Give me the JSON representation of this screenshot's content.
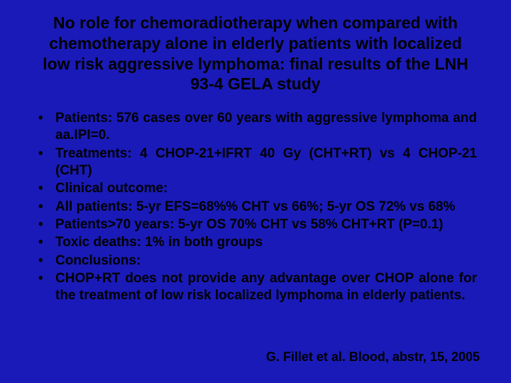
{
  "background_color": "#1a1ab8",
  "text_color": "#000000",
  "title": {
    "text": "No role for chemoradiotherapy when compared with chemotherapy alone in elderly patients with localized low risk aggressive lymphoma: final results of the LNH 93-4 GELA study",
    "fontsize": 23,
    "fontweight": "bold",
    "align": "center"
  },
  "bullets": [
    "Patients: 576 cases over 60 years with aggressive lymphoma and aa.IPI=0.",
    "Treatments: 4 CHOP-21+IFRT 40 Gy (CHT+RT) vs 4 CHOP-21 (CHT)",
    "Clinical outcome:",
    "All patients: 5-yr EFS=68%% CHT vs 66%; 5-yr OS 72% vs 68%",
    "Patients>70 years: 5-yr OS 70% CHT vs 58% CHT+RT (P=0.1)",
    "Toxic deaths: 1% in both groups",
    "Conclusions:",
    "CHOP+RT does not provide any advantage over CHOP alone for the treatment of low risk localized lymphoma in elderly patients."
  ],
  "bullet_style": {
    "fontsize": 19,
    "fontweight": "bold",
    "marker": "•"
  },
  "citation": {
    "text": "G. Fillet et al. Blood, abstr, 15, 2005",
    "fontsize": 18,
    "fontweight": "bold",
    "position": "bottom-right"
  }
}
